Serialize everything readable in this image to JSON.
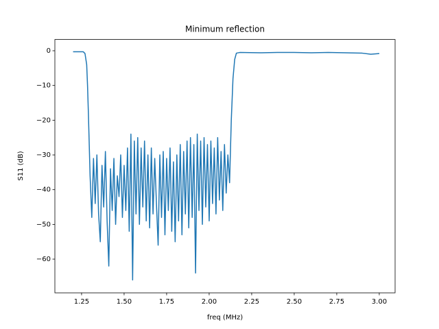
{
  "chart_data": {
    "type": "line",
    "title": "Minimum reflection",
    "x_label": "freq (MHz)",
    "y_label": "S11 (dB)",
    "x": [
      1.2,
      1.22,
      1.24,
      1.26,
      1.27,
      1.28,
      1.285,
      1.29,
      1.295,
      1.3,
      1.31,
      1.32,
      1.33,
      1.34,
      1.35,
      1.36,
      1.37,
      1.38,
      1.39,
      1.4,
      1.41,
      1.42,
      1.43,
      1.44,
      1.45,
      1.46,
      1.47,
      1.48,
      1.49,
      1.5,
      1.51,
      1.52,
      1.53,
      1.54,
      1.55,
      1.56,
      1.57,
      1.58,
      1.59,
      1.6,
      1.61,
      1.62,
      1.63,
      1.64,
      1.65,
      1.66,
      1.67,
      1.68,
      1.69,
      1.7,
      1.71,
      1.72,
      1.73,
      1.74,
      1.75,
      1.76,
      1.77,
      1.78,
      1.79,
      1.8,
      1.81,
      1.82,
      1.83,
      1.84,
      1.85,
      1.86,
      1.87,
      1.88,
      1.89,
      1.9,
      1.91,
      1.92,
      1.93,
      1.94,
      1.95,
      1.96,
      1.97,
      1.98,
      1.99,
      2.0,
      2.01,
      2.02,
      2.03,
      2.04,
      2.05,
      2.06,
      2.07,
      2.08,
      2.09,
      2.1,
      2.11,
      2.12,
      2.13,
      2.14,
      2.15,
      2.16,
      2.18,
      2.3,
      2.4,
      2.5,
      2.6,
      2.7,
      2.8,
      2.9,
      2.95,
      3.0
    ],
    "series": [
      {
        "color": "#1f77b4",
        "values": [
          -0.3,
          -0.3,
          -0.3,
          -0.3,
          -0.8,
          -4,
          -10,
          -18,
          -27,
          -36,
          -48,
          -31,
          -44,
          -30,
          -47,
          -55,
          -33,
          -45,
          -29,
          -49,
          -62,
          -34,
          -46,
          -31,
          -50,
          -36,
          -42,
          -30,
          -48,
          -33,
          -46,
          -28,
          -52,
          -24,
          -66,
          -26,
          -47,
          -25,
          -50,
          -28,
          -45,
          -26,
          -49,
          -30,
          -51,
          -28,
          -47,
          -31,
          -44,
          -56,
          -30,
          -48,
          -29,
          -53,
          -31,
          -46,
          -28,
          -52,
          -32,
          -55,
          -30,
          -49,
          -27,
          -53,
          -29,
          -47,
          -26,
          -51,
          -25,
          -48,
          -27,
          -64,
          -24,
          -46,
          -26,
          -50,
          -25,
          -45,
          -27,
          -49,
          -26,
          -44,
          -28,
          -47,
          -25,
          -43,
          -29,
          -46,
          -27,
          -41,
          -30,
          -38,
          -20,
          -8,
          -2.5,
          -0.7,
          -0.5,
          -0.6,
          -0.5,
          -0.5,
          -0.6,
          -0.5,
          -0.6,
          -0.7,
          -1.0,
          -0.8
        ]
      }
    ],
    "xlim": [
      1.093,
      3.093
    ],
    "ylim": [
      -69.7,
      3.24
    ],
    "xticks": [
      1.25,
      {
        "value": 1.5,
        "label": "1.50"
      },
      1.75,
      {
        "value": 2.0,
        "label": "2.00"
      },
      2.25,
      {
        "value": 2.5,
        "label": "2.50"
      },
      2.75,
      {
        "value": 3.0,
        "label": "3.00"
      }
    ],
    "yticks": [
      0,
      {
        "value": -10,
        "label": "−10"
      },
      {
        "value": -20,
        "label": "−20"
      },
      {
        "value": -30,
        "label": "−30"
      },
      {
        "value": -40,
        "label": "−40"
      },
      {
        "value": -50,
        "label": "−50"
      },
      {
        "value": -60,
        "label": "−60"
      }
    ]
  }
}
